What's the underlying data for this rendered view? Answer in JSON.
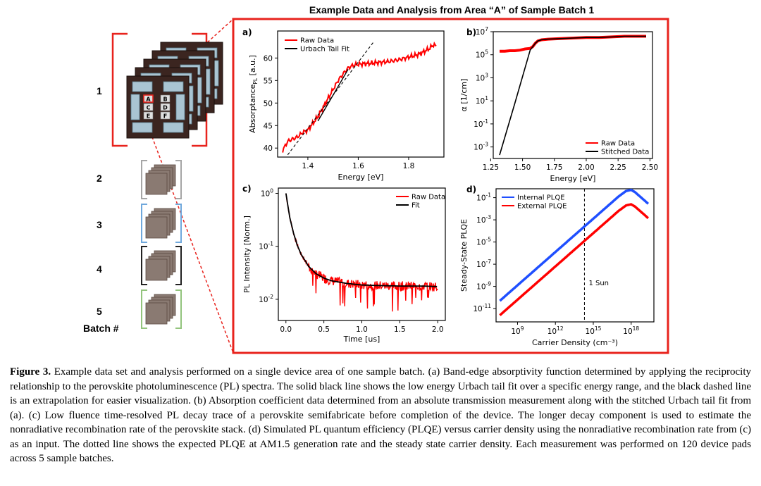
{
  "figure": {
    "title": "Example Data and Analysis from Area “A” of Sample Batch 1",
    "batch_labels": [
      "1",
      "2",
      "3",
      "4",
      "5"
    ],
    "batch_axis_label": "Batch #",
    "pad_letters": [
      "A",
      "B",
      "C",
      "D",
      "E",
      "F"
    ],
    "colors": {
      "frame_red": "#e8231d",
      "batch2": "#a6a6a6",
      "batch3": "#6fa8dc",
      "batch4": "#222222",
      "batch5": "#93c47d",
      "raw_red": "#ff0000",
      "blue": "#1f4fff"
    }
  },
  "chart_data": [
    {
      "panel": "a)",
      "type": "line",
      "xlabel": "Energy [eV]",
      "ylabel": "Absorptance_PL [a.u.]",
      "xlim": [
        1.28,
        1.94
      ],
      "ylim": [
        38,
        66
      ],
      "xticks": [
        1.4,
        1.6,
        1.8
      ],
      "yticks": [
        40,
        45,
        50,
        55,
        60
      ],
      "xtick_labels": [
        "1.4",
        "1.6",
        "1.8"
      ],
      "ytick_labels": [
        "40",
        "45",
        "50",
        "55",
        "60"
      ],
      "legend": [
        "Raw Data",
        "Urbach Tail Fit"
      ],
      "legend_position": "top-left",
      "series": [
        {
          "name": "Raw Data",
          "color": "#ff0000",
          "x": [
            1.3,
            1.32,
            1.34,
            1.36,
            1.38,
            1.4,
            1.42,
            1.44,
            1.46,
            1.48,
            1.5,
            1.52,
            1.54,
            1.56,
            1.58,
            1.6,
            1.64,
            1.68,
            1.72,
            1.76,
            1.8,
            1.84,
            1.88,
            1.9,
            1.91
          ],
          "y": [
            39.5,
            41.5,
            42.0,
            42.5,
            43.5,
            44.0,
            45.5,
            47.0,
            49.0,
            51.0,
            53.0,
            55.0,
            56.5,
            57.8,
            58.4,
            58.6,
            58.8,
            59.0,
            59.2,
            59.6,
            60.2,
            60.8,
            62.0,
            63.0,
            62.5
          ]
        },
        {
          "name": "Urbach Tail Fit",
          "color": "#000000",
          "x": [
            1.44,
            1.56
          ],
          "y": [
            46.0,
            57.5
          ]
        },
        {
          "name": "extrapolation",
          "color": "#000000",
          "dashed": true,
          "x": [
            1.32,
            1.66
          ],
          "y": [
            38.5,
            63.5
          ]
        }
      ]
    },
    {
      "panel": "b)",
      "type": "line",
      "xlabel": "Energy [eV]",
      "ylabel": "α [1/cm]",
      "yscale": "log",
      "xlim": [
        1.27,
        2.52
      ],
      "ylim_exp": [
        -4,
        7
      ],
      "xticks": [
        1.25,
        1.5,
        1.75,
        2.0,
        2.25,
        2.5
      ],
      "xtick_labels": [
        "1.25",
        "1.50",
        "1.75",
        "2.00",
        "2.25",
        "2.50"
      ],
      "ytick_exps": [
        -3,
        -1,
        1,
        3,
        5,
        7
      ],
      "ytick_labels": [
        "10",
        "10",
        "10",
        "10",
        "10",
        "10"
      ],
      "ytick_sup": [
        "-3",
        "-1",
        "1",
        "3",
        "5",
        "7"
      ],
      "legend": [
        "Raw Data",
        "Stitched Data"
      ],
      "legend_position": "bottom-right",
      "series": [
        {
          "name": "Raw Data",
          "color": "#ff0000",
          "x": [
            1.32,
            1.36,
            1.4,
            1.44,
            1.48,
            1.52,
            1.56,
            1.58,
            1.6,
            1.62,
            1.65,
            1.7,
            1.8,
            1.9,
            2.0,
            2.1,
            2.2,
            2.3,
            2.4,
            2.47
          ],
          "log10_y": [
            5.3,
            5.3,
            5.35,
            5.35,
            5.4,
            5.5,
            5.55,
            5.7,
            6.0,
            6.2,
            6.3,
            6.35,
            6.4,
            6.45,
            6.5,
            6.5,
            6.55,
            6.6,
            6.6,
            6.6
          ]
        },
        {
          "name": "Stitched Data",
          "color": "#000000",
          "x": [
            1.32,
            1.44,
            1.56,
            1.6,
            1.62,
            1.65,
            1.7,
            1.8,
            1.9,
            2.0,
            2.1,
            2.2,
            2.3,
            2.4,
            2.47
          ],
          "log10_y": [
            -3.7,
            0.8,
            5.4,
            6.0,
            6.2,
            6.3,
            6.35,
            6.4,
            6.45,
            6.5,
            6.5,
            6.55,
            6.6,
            6.6,
            6.6
          ]
        }
      ]
    },
    {
      "panel": "c)",
      "type": "line",
      "xlabel": "Time [us]",
      "ylabel": "PL Intensity [Norm.]",
      "yscale": "log",
      "xlim": [
        -0.1,
        2.1
      ],
      "ylim_exp": [
        -2.4,
        0.1
      ],
      "xticks": [
        0.0,
        0.5,
        1.0,
        1.5,
        2.0
      ],
      "xtick_labels": [
        "0.0",
        "0.5",
        "1.0",
        "1.5",
        "2.0"
      ],
      "ytick_exps": [
        0,
        -1,
        -2
      ],
      "ytick_labels": [
        "10",
        "10",
        "10"
      ],
      "ytick_sup": [
        "0",
        "-1",
        "-2"
      ],
      "legend": [
        "Raw Data",
        "Fit"
      ],
      "legend_position": "top-right",
      "series": [
        {
          "name": "Raw Data",
          "color": "#ff0000",
          "noisy": true,
          "x": [
            0.0,
            0.05,
            0.1,
            0.15,
            0.2,
            0.3,
            0.4,
            0.5,
            0.6,
            0.8,
            1.0,
            1.2,
            1.5,
            1.8,
            1.95,
            2.0
          ],
          "log10_y": [
            0.0,
            -0.45,
            -0.75,
            -0.98,
            -1.15,
            -1.38,
            -1.52,
            -1.6,
            -1.65,
            -1.7,
            -1.73,
            -1.74,
            -1.75,
            -1.75,
            -1.76,
            -1.76
          ]
        },
        {
          "name": "Fit",
          "color": "#000000",
          "x": [
            0.0,
            0.05,
            0.1,
            0.15,
            0.2,
            0.3,
            0.4,
            0.5,
            0.6,
            0.8,
            1.0,
            1.2,
            1.5,
            1.8,
            2.0
          ],
          "log10_y": [
            0.0,
            -0.45,
            -0.75,
            -0.98,
            -1.15,
            -1.38,
            -1.52,
            -1.6,
            -1.65,
            -1.7,
            -1.73,
            -1.74,
            -1.75,
            -1.75,
            -1.76
          ]
        }
      ]
    },
    {
      "panel": "d)",
      "type": "line",
      "xlabel": "Carrier Density (cm⁻³)",
      "ylabel": "Steady-State PLQE",
      "xscale": "log",
      "yscale": "log",
      "xlim_exp": [
        7.3,
        19.8
      ],
      "ylim_exp": [
        -12.2,
        -0.2
      ],
      "xtick_exps": [
        9,
        12,
        15,
        18
      ],
      "xtick_labels": [
        "10",
        "10",
        "10",
        "10"
      ],
      "xtick_sup": [
        "9",
        "12",
        "15",
        "18"
      ],
      "ytick_exps": [
        -1,
        -3,
        -5,
        -7,
        -9,
        -11
      ],
      "ytick_labels": [
        "10",
        "10",
        "10",
        "10",
        "10",
        "10"
      ],
      "ytick_sup": [
        "-1",
        "-3",
        "-5",
        "-7",
        "-9",
        "-11"
      ],
      "legend": [
        "Internal PLQE",
        "External PLQE"
      ],
      "legend_position": "top-left",
      "annotation": {
        "text": "1 Sun",
        "x_exp": 14.3
      },
      "series": [
        {
          "name": "Internal PLQE",
          "color": "#1f4fff",
          "log10_x": [
            7.6,
            8.5,
            10,
            12,
            14,
            16,
            17,
            17.6,
            18,
            18.3,
            19.4
          ],
          "log10_y": [
            -10.3,
            -9.4,
            -7.9,
            -5.9,
            -3.9,
            -1.9,
            -0.9,
            -0.4,
            -0.3,
            -0.5,
            -1.6
          ]
        },
        {
          "name": "External PLQE",
          "color": "#ff0000",
          "log10_x": [
            7.6,
            8.5,
            10,
            12,
            14,
            16,
            17,
            17.6,
            18,
            18.3,
            19.4
          ],
          "log10_y": [
            -11.6,
            -10.7,
            -9.2,
            -7.2,
            -5.2,
            -3.2,
            -2.2,
            -1.7,
            -1.6,
            -1.8,
            -2.9
          ]
        }
      ]
    }
  ],
  "caption": {
    "label": "Figure 3.",
    "text": "Example data set and analysis performed on a single device area of one sample batch. (a) Band-edge absorptivity function determined by applying the reciprocity relationship to the perovskite photoluminescence (PL) spectra. The solid black line shows the low energy Urbach tail fit over a specific energy range, and the black dashed line is an extrapolation for easier visualization. (b) Absorption coefficient data determined from an absolute transmission measurement along with the stitched Urbach tail fit from (a). (c) Low fluence time-resolved PL decay trace of a perovskite semifabricate before completion of the device. The longer decay component is used to estimate the nonradiative recombination rate of the perovskite stack. (d) Simulated PL quantum efficiency (PLQE) versus carrier density using the nonradiative recombination rate from (c) as an input. The dotted line shows the expected PLQE at AM1.5 generation rate and the steady state carrier density. Each measurement was performed on 120 device pads across 5 sample batches."
  }
}
